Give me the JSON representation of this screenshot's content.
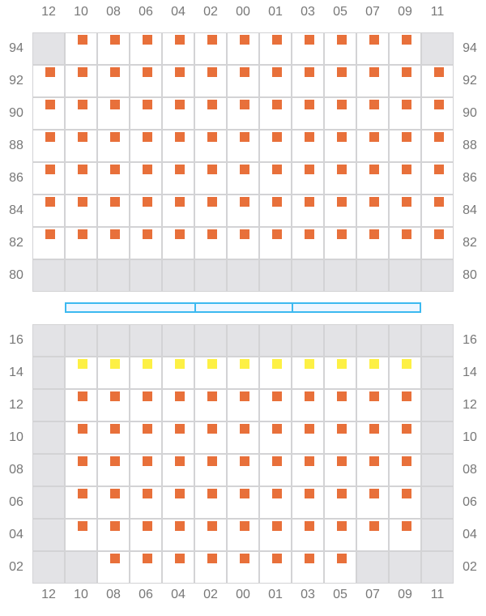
{
  "columns": [
    "12",
    "10",
    "08",
    "06",
    "04",
    "02",
    "00",
    "01",
    "03",
    "05",
    "07",
    "09",
    "11"
  ],
  "colors": {
    "occupied": "#e8703a",
    "selected": "#fdf044",
    "unavailable": "#e3e3e6",
    "stage": "#3cb9f0"
  },
  "legend": {
    "o": "occupied",
    "y": "selected",
    "x": "unavailable",
    "-": "free"
  },
  "top_section": {
    "rows": [
      {
        "label": "94",
        "seats": "xooooooooooox"
      },
      {
        "label": "92",
        "seats": "ooooooooooooo"
      },
      {
        "label": "90",
        "seats": "ooooooooooooo"
      },
      {
        "label": "88",
        "seats": "ooooooooooooo"
      },
      {
        "label": "86",
        "seats": "ooooooooooooo"
      },
      {
        "label": "84",
        "seats": "ooooooooooooo"
      },
      {
        "label": "82",
        "seats": "ooooooooooooo"
      },
      {
        "label": "80",
        "seats": "xxxxxxxxxxxxx"
      }
    ]
  },
  "stage_segments": 3,
  "bottom_section": {
    "rows": [
      {
        "label": "16",
        "seats": "xxxxxxxxxxxxx"
      },
      {
        "label": "14",
        "seats": "xyyyyyyyyyyyx"
      },
      {
        "label": "12",
        "seats": "xooooooooooox"
      },
      {
        "label": "10",
        "seats": "xooooooooooox"
      },
      {
        "label": "08",
        "seats": "xooooooooooox"
      },
      {
        "label": "06",
        "seats": "xooooooooooox"
      },
      {
        "label": "04",
        "seats": "xooooooooooox"
      },
      {
        "label": "02",
        "seats": "xxooooooooxxx"
      }
    ]
  }
}
